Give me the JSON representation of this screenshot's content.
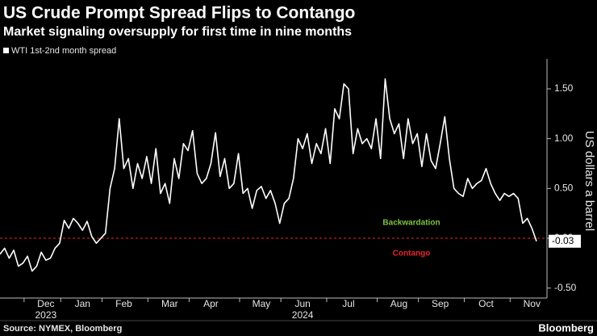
{
  "chart_data": {
    "type": "line",
    "title": "US Crude Prompt Spread Flips to Contango",
    "subtitle": "Market signaling oversupply for first time in nine months",
    "y_axis_label": "US dollars a barrel",
    "source": "Source: NYMEX, Bloomberg",
    "brand": "Bloomberg",
    "annotations": [
      {
        "text": "Backwardation",
        "color": "#7fc241"
      },
      {
        "text": "Contango",
        "color": "#e8262b"
      }
    ],
    "reference_line": {
      "value": 0,
      "color": "#e8262b"
    },
    "year_labels": [
      "2023",
      "2024"
    ],
    "categories": [
      null,
      null,
      null,
      null,
      null,
      null,
      null,
      null,
      null,
      null,
      "Dec",
      null,
      null,
      null,
      null,
      null,
      null,
      null,
      "Jan",
      null,
      null,
      null,
      null,
      null,
      null,
      null,
      null,
      "Feb",
      null,
      null,
      null,
      null,
      null,
      null,
      null,
      null,
      null,
      "Mar",
      null,
      null,
      null,
      null,
      null,
      null,
      null,
      null,
      "Apr",
      null,
      null,
      null,
      null,
      null,
      null,
      null,
      null,
      null,
      null,
      "May",
      null,
      null,
      null,
      null,
      null,
      null,
      null,
      null,
      "Jun",
      null,
      null,
      null,
      null,
      null,
      null,
      null,
      null,
      null,
      "Jul",
      null,
      null,
      null,
      null,
      null,
      null,
      null,
      null,
      null,
      null,
      "Aug",
      null,
      null,
      null,
      null,
      null,
      null,
      null,
      null,
      "Sep",
      null,
      null,
      null,
      null,
      null,
      null,
      null,
      null,
      null,
      "Oct",
      null,
      null,
      null,
      null,
      null,
      null,
      null,
      null,
      null,
      "Nov",
      null
    ],
    "series": [
      {
        "name": "WTI 1st-2nd month spread",
        "color": "#ffffff",
        "values": [
          -0.16,
          -0.1,
          -0.2,
          -0.12,
          -0.28,
          -0.25,
          -0.18,
          -0.33,
          -0.28,
          -0.14,
          -0.22,
          -0.2,
          -0.1,
          -0.05,
          0.18,
          0.1,
          0.2,
          0.15,
          0.08,
          0.17,
          0.02,
          -0.05,
          0.0,
          0.05,
          0.5,
          0.7,
          1.2,
          0.7,
          0.8,
          0.5,
          0.75,
          0.6,
          0.82,
          0.55,
          0.9,
          0.45,
          0.55,
          0.35,
          0.8,
          0.6,
          0.95,
          0.88,
          1.08,
          0.65,
          0.55,
          0.6,
          0.75,
          1.06,
          0.62,
          0.8,
          0.5,
          0.55,
          0.85,
          0.45,
          0.5,
          0.3,
          0.48,
          0.52,
          0.4,
          0.48,
          0.35,
          0.15,
          0.35,
          0.4,
          0.6,
          1.0,
          0.9,
          1.05,
          0.75,
          0.95,
          0.85,
          1.1,
          0.75,
          1.3,
          1.2,
          1.55,
          1.5,
          0.85,
          1.1,
          0.95,
          1.0,
          0.9,
          1.2,
          0.8,
          1.6,
          1.2,
          1.05,
          1.15,
          0.8,
          1.2,
          0.95,
          1.05,
          0.72,
          1.05,
          0.78,
          0.7,
          0.95,
          1.22,
          0.8,
          0.5,
          0.45,
          0.42,
          0.6,
          0.5,
          0.55,
          0.58,
          0.7,
          0.55,
          0.45,
          0.38,
          0.45,
          0.42,
          0.45,
          0.4,
          0.15,
          0.2,
          0.1,
          -0.03
        ]
      }
    ],
    "ylim": [
      -0.6,
      1.8
    ],
    "yticks": [
      {
        "value": -0.5,
        "label": "-0.50"
      },
      {
        "value": 0,
        "label": "0.00"
      },
      {
        "value": 0.5,
        "label": "0.50"
      },
      {
        "value": 1,
        "label": "1.00"
      },
      {
        "value": 1.5,
        "label": "1.50"
      }
    ],
    "grid": false
  }
}
